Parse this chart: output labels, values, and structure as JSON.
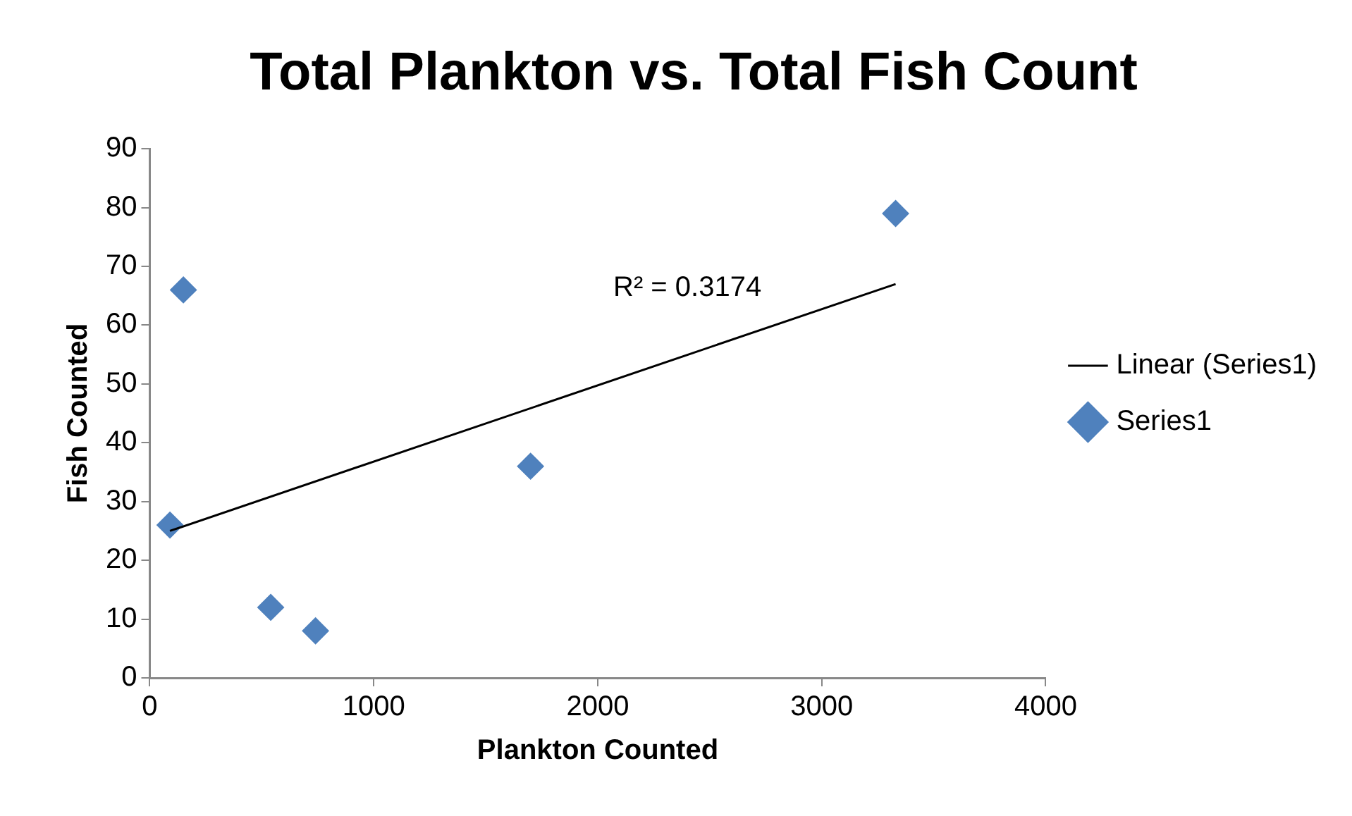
{
  "chart_data": {
    "type": "scatter",
    "title": "Total Plankton vs. Total Fish Count",
    "xlabel": "Plankton Counted",
    "ylabel": "Fish Counted",
    "xlim": [
      0,
      4000
    ],
    "xticks": [
      0,
      1000,
      2000,
      3000,
      4000
    ],
    "ylim": [
      0,
      90
    ],
    "yticks": [
      0,
      10,
      20,
      30,
      40,
      50,
      60,
      70,
      80,
      90
    ],
    "grid": false,
    "legend": "right",
    "marker": "diamond",
    "series": [
      {
        "name": "Series1",
        "color": "#4f81bd",
        "x": [
          90,
          150,
          540,
          740,
          1700,
          3330
        ],
        "values": [
          26,
          66,
          12,
          8,
          36,
          79
        ]
      },
      {
        "name": "Linear (Series1)",
        "type": "line",
        "color": "#000000",
        "marker": "none",
        "x": [
          90,
          3330
        ],
        "values": [
          25,
          67
        ]
      }
    ],
    "annotations": [
      "R² = 0.3174"
    ]
  }
}
